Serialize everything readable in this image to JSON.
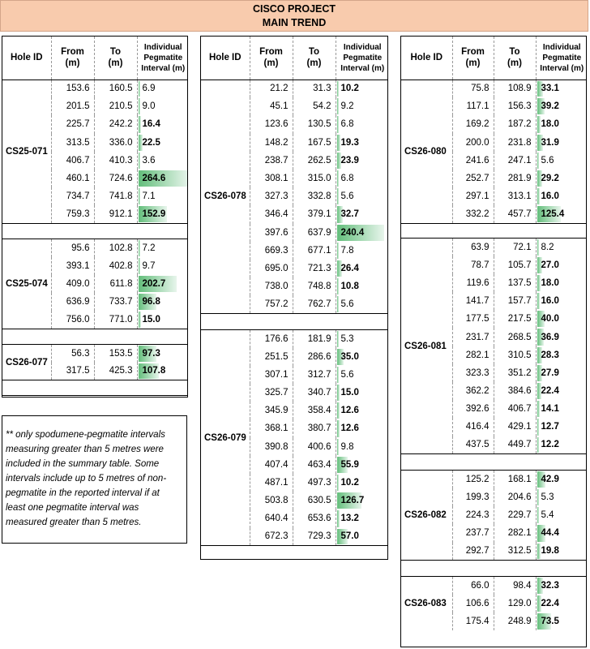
{
  "title": {
    "line1": "CISCO PROJECT",
    "line2": "MAIN TREND"
  },
  "headers": {
    "hole_id": "Hole ID",
    "from_1": "From",
    "from_2": "(m)",
    "to_1": "To",
    "to_2": "(m)",
    "int_1": "Individual",
    "int_2": "Pegmatite",
    "int_3": "Interval (m)"
  },
  "bar_scale_max_m": 264.6,
  "panels": [
    {
      "blocks": [
        {
          "hole": "CS25-071",
          "rows": [
            [
              "153.6",
              "160.5",
              "6.9",
              false
            ],
            [
              "201.5",
              "210.5",
              "9.0",
              false
            ],
            [
              "225.7",
              "242.2",
              "16.4",
              true
            ],
            [
              "313.5",
              "336.0",
              "22.5",
              true
            ],
            [
              "406.7",
              "410.3",
              "3.6",
              false
            ],
            [
              "460.1",
              "724.6",
              "264.6",
              true
            ],
            [
              "734.7",
              "741.8",
              "7.1",
              false
            ],
            [
              "759.3",
              "912.1",
              "152.9",
              true
            ]
          ]
        },
        {
          "hole": "CS25-074",
          "rows": [
            [
              "95.6",
              "102.8",
              "7.2",
              false
            ],
            [
              "393.1",
              "402.8",
              "9.7",
              false
            ],
            [
              "409.0",
              "611.8",
              "202.7",
              true
            ],
            [
              "636.9",
              "733.7",
              "96.8",
              true
            ],
            [
              "756.0",
              "771.0",
              "15.0",
              true
            ]
          ]
        },
        {
          "hole": "CS26-077",
          "rows": [
            [
              "56.3",
              "153.5",
              "97.3",
              true
            ],
            [
              "317.5",
              "425.3",
              "107.8",
              true
            ]
          ]
        }
      ]
    },
    {
      "blocks": [
        {
          "hole": "CS26-078",
          "rows": [
            [
              "21.2",
              "31.3",
              "10.2",
              true
            ],
            [
              "45.1",
              "54.2",
              "9.2",
              false
            ],
            [
              "123.6",
              "130.5",
              "6.8",
              false
            ],
            [
              "148.2",
              "167.5",
              "19.3",
              true
            ],
            [
              "238.7",
              "262.5",
              "23.9",
              true
            ],
            [
              "308.1",
              "315.0",
              "6.8",
              false
            ],
            [
              "327.3",
              "332.8",
              "5.6",
              false
            ],
            [
              "346.4",
              "379.1",
              "32.7",
              true
            ],
            [
              "397.6",
              "637.9",
              "240.4",
              true
            ],
            [
              "669.3",
              "677.1",
              "7.8",
              false
            ],
            [
              "695.0",
              "721.3",
              "26.4",
              true
            ],
            [
              "738.0",
              "748.8",
              "10.8",
              true
            ],
            [
              "757.2",
              "762.7",
              "5.6",
              false
            ]
          ]
        },
        {
          "hole": "CS26-079",
          "rows": [
            [
              "176.6",
              "181.9",
              "5.3",
              false
            ],
            [
              "251.5",
              "286.6",
              "35.0",
              true
            ],
            [
              "307.1",
              "312.7",
              "5.6",
              false
            ],
            [
              "325.7",
              "340.7",
              "15.0",
              true
            ],
            [
              "345.9",
              "358.4",
              "12.6",
              true
            ],
            [
              "368.1",
              "380.7",
              "12.6",
              true
            ],
            [
              "390.8",
              "400.6",
              "9.8",
              false
            ],
            [
              "407.4",
              "463.4",
              "55.9",
              true
            ],
            [
              "487.1",
              "497.3",
              "10.2",
              true
            ],
            [
              "503.8",
              "630.5",
              "126.7",
              true
            ],
            [
              "640.4",
              "653.6",
              "13.2",
              true
            ],
            [
              "672.3",
              "729.3",
              "57.0",
              true
            ]
          ]
        }
      ]
    },
    {
      "blocks": [
        {
          "hole": "CS26-080",
          "rows": [
            [
              "75.8",
              "108.9",
              "33.1",
              true
            ],
            [
              "117.1",
              "156.3",
              "39.2",
              true
            ],
            [
              "169.2",
              "187.2",
              "18.0",
              true
            ],
            [
              "200.0",
              "231.8",
              "31.9",
              true
            ],
            [
              "241.6",
              "247.1",
              "5.6",
              false
            ],
            [
              "252.7",
              "281.9",
              "29.2",
              true
            ],
            [
              "297.1",
              "313.1",
              "16.0",
              true
            ],
            [
              "332.2",
              "457.7",
              "125.4",
              true
            ]
          ]
        },
        {
          "hole": "CS26-081",
          "rows": [
            [
              "63.9",
              "72.1",
              "8.2",
              false
            ],
            [
              "78.7",
              "105.7",
              "27.0",
              true
            ],
            [
              "119.6",
              "137.5",
              "18.0",
              true
            ],
            [
              "141.7",
              "157.7",
              "16.0",
              true
            ],
            [
              "177.5",
              "217.5",
              "40.0",
              true
            ],
            [
              "231.7",
              "268.5",
              "36.9",
              true
            ],
            [
              "282.1",
              "310.5",
              "28.3",
              true
            ],
            [
              "323.3",
              "351.2",
              "27.9",
              true
            ],
            [
              "362.2",
              "384.6",
              "22.4",
              true
            ],
            [
              "392.6",
              "406.7",
              "14.1",
              true
            ],
            [
              "416.4",
              "429.1",
              "12.7",
              true
            ],
            [
              "437.5",
              "449.7",
              "12.2",
              true
            ]
          ]
        },
        {
          "hole": "CS26-082",
          "rows": [
            [
              "125.2",
              "168.1",
              "42.9",
              true
            ],
            [
              "199.3",
              "204.6",
              "5.3",
              false
            ],
            [
              "224.3",
              "229.7",
              "5.4",
              false
            ],
            [
              "237.7",
              "282.1",
              "44.4",
              true
            ],
            [
              "292.7",
              "312.5",
              "19.8",
              true
            ]
          ]
        },
        {
          "hole": "CS26-083",
          "rows": [
            [
              "66.0",
              "98.4",
              "32.3",
              true
            ],
            [
              "106.6",
              "129.0",
              "22.4",
              true
            ],
            [
              "175.4",
              "248.9",
              "73.5",
              true
            ]
          ]
        }
      ]
    }
  ],
  "note": "** only spodumene-pegmatite intervals measuring greater than 5 metres were included in the summary table. Some intervals include up to 5 metres of non-pegmatite in the reported interval if at least one pegmatite interval was measured greater than 5 metres."
}
